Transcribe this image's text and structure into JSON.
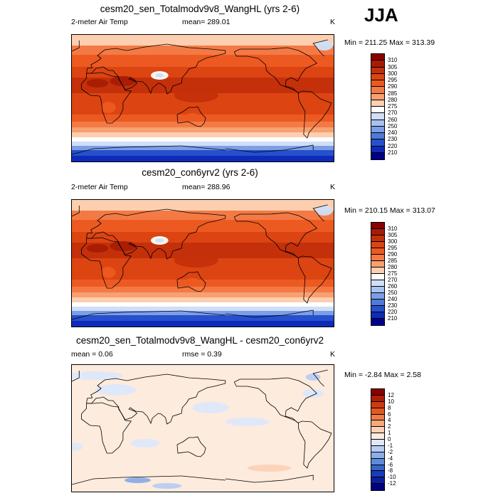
{
  "season": "JJA",
  "chart_data": [
    {
      "type": "heatmap",
      "title": "cesm20_sen_Totalmodv9v8_WangHL (yrs 2-6)",
      "left_label": "2-meter Air Temp",
      "center_label": "mean= 289.01",
      "units": "K",
      "minmax": "Min = 211.25 Max = 313.39",
      "min": 211.25,
      "max": 313.39,
      "mean": 289.01,
      "colorbar": {
        "levels": [
          "310",
          "305",
          "300",
          "295",
          "290",
          "285",
          "280",
          "275",
          "270",
          "260",
          "250",
          "240",
          "230",
          "220",
          "210"
        ],
        "colors": [
          "#8b0000",
          "#a81c05",
          "#c4300a",
          "#dc4412",
          "#ec5a22",
          "#f47a45",
          "#f8a070",
          "#fccfb0",
          "#ffffff",
          "#cfdff8",
          "#a9c2f0",
          "#7c9ee6",
          "#4e7ada",
          "#2650cc",
          "#0d2ab8",
          "#00008a"
        ]
      },
      "bands": [
        {
          "lat_top": 90,
          "lat_bottom": 75,
          "value": 275
        },
        {
          "lat_top": 75,
          "lat_bottom": 62,
          "value": 285
        },
        {
          "lat_top": 62,
          "lat_bottom": 45,
          "value": 290
        },
        {
          "lat_top": 45,
          "lat_bottom": 30,
          "value": 297
        },
        {
          "lat_top": 30,
          "lat_bottom": 8,
          "value": 301
        },
        {
          "lat_top": 8,
          "lat_bottom": -10,
          "value": 299
        },
        {
          "lat_top": -10,
          "lat_bottom": -22,
          "value": 295
        },
        {
          "lat_top": -22,
          "lat_bottom": -32,
          "value": 291
        },
        {
          "lat_top": -32,
          "lat_bottom": -40,
          "value": 286
        },
        {
          "lat_top": -40,
          "lat_bottom": -47,
          "value": 281
        },
        {
          "lat_top": -47,
          "lat_bottom": -54,
          "value": 276
        },
        {
          "lat_top": -54,
          "lat_bottom": -60,
          "value": 272
        },
        {
          "lat_top": -60,
          "lat_bottom": -66,
          "value": 260
        },
        {
          "lat_top": -66,
          "lat_bottom": -72,
          "value": 245
        },
        {
          "lat_top": -72,
          "lat_bottom": -80,
          "value": 225
        },
        {
          "lat_top": -80,
          "lat_bottom": -90,
          "value": 212
        }
      ],
      "spots": [
        {
          "lon": 90,
          "lat": 33,
          "rx": 12,
          "ry": 6,
          "value": 270
        },
        {
          "lon": 90,
          "lat": 33,
          "rx": 6,
          "ry": 3,
          "value": 262
        },
        {
          "lon": 40,
          "lat": 25,
          "rx": 18,
          "ry": 7,
          "value": 308
        },
        {
          "lon": 5,
          "lat": 22,
          "rx": 15,
          "ry": 6,
          "value": 306
        },
        {
          "lon": 140,
          "lat": 5,
          "rx": 30,
          "ry": 10,
          "value": 302
        },
        {
          "lon": 20,
          "lat": -12,
          "rx": 10,
          "ry": 8,
          "value": 293
        },
        {
          "lon": 135,
          "lat": -25,
          "rx": 10,
          "ry": 5,
          "value": 290
        },
        {
          "lon": -45,
          "lat": 75,
          "rx": 12,
          "ry": 7,
          "value": 262
        }
      ]
    },
    {
      "type": "heatmap",
      "title": "cesm20_con6yrv2 (yrs 2-6)",
      "left_label": "2-meter Air Temp",
      "center_label": "mean= 288.96",
      "units": "K",
      "minmax": "Min = 210.15 Max = 313.07",
      "min": 210.15,
      "max": 313.07,
      "mean": 288.96,
      "colorbar": {
        "levels": [
          "310",
          "305",
          "300",
          "295",
          "290",
          "285",
          "280",
          "275",
          "270",
          "260",
          "250",
          "240",
          "230",
          "220",
          "210"
        ],
        "colors": [
          "#8b0000",
          "#a81c05",
          "#c4300a",
          "#dc4412",
          "#ec5a22",
          "#f47a45",
          "#f8a070",
          "#fccfb0",
          "#ffffff",
          "#cfdff8",
          "#a9c2f0",
          "#7c9ee6",
          "#4e7ada",
          "#2650cc",
          "#0d2ab8",
          "#00008a"
        ]
      },
      "bands": [
        {
          "lat_top": 90,
          "lat_bottom": 75,
          "value": 275
        },
        {
          "lat_top": 75,
          "lat_bottom": 62,
          "value": 285
        },
        {
          "lat_top": 62,
          "lat_bottom": 45,
          "value": 290
        },
        {
          "lat_top": 45,
          "lat_bottom": 30,
          "value": 297
        },
        {
          "lat_top": 30,
          "lat_bottom": 8,
          "value": 301
        },
        {
          "lat_top": 8,
          "lat_bottom": -10,
          "value": 299
        },
        {
          "lat_top": -10,
          "lat_bottom": -22,
          "value": 295
        },
        {
          "lat_top": -22,
          "lat_bottom": -32,
          "value": 291
        },
        {
          "lat_top": -32,
          "lat_bottom": -40,
          "value": 286
        },
        {
          "lat_top": -40,
          "lat_bottom": -47,
          "value": 281
        },
        {
          "lat_top": -47,
          "lat_bottom": -54,
          "value": 276
        },
        {
          "lat_top": -54,
          "lat_bottom": -60,
          "value": 272
        },
        {
          "lat_top": -60,
          "lat_bottom": -66,
          "value": 260
        },
        {
          "lat_top": -66,
          "lat_bottom": -72,
          "value": 245
        },
        {
          "lat_top": -72,
          "lat_bottom": -80,
          "value": 225
        },
        {
          "lat_top": -80,
          "lat_bottom": -90,
          "value": 212
        }
      ],
      "spots": [
        {
          "lon": 90,
          "lat": 33,
          "rx": 12,
          "ry": 6,
          "value": 270
        },
        {
          "lon": 90,
          "lat": 33,
          "rx": 6,
          "ry": 3,
          "value": 262
        },
        {
          "lon": 40,
          "lat": 25,
          "rx": 18,
          "ry": 7,
          "value": 308
        },
        {
          "lon": 5,
          "lat": 22,
          "rx": 15,
          "ry": 6,
          "value": 306
        },
        {
          "lon": 140,
          "lat": 5,
          "rx": 30,
          "ry": 10,
          "value": 302
        },
        {
          "lon": 20,
          "lat": -12,
          "rx": 10,
          "ry": 8,
          "value": 293
        },
        {
          "lon": 135,
          "lat": -25,
          "rx": 10,
          "ry": 5,
          "value": 290
        },
        {
          "lon": -45,
          "lat": 75,
          "rx": 12,
          "ry": 7,
          "value": 262
        }
      ]
    },
    {
      "type": "heatmap",
      "title": "cesm20_sen_Totalmodv9v8_WangHL - cesm20_con6yrv2",
      "left_label": "mean =   0.06",
      "center_label": "rmse =   0.39",
      "units": "K",
      "minmax": "Min =  -2.84 Max =   2.58",
      "min": -2.84,
      "max": 2.58,
      "mean": 0.06,
      "rmse": 0.39,
      "colorbar": {
        "levels": [
          "12",
          "10",
          "8",
          "6",
          "4",
          "2",
          "1",
          "0",
          "-1",
          "-2",
          "-4",
          "-6",
          "-8",
          "-10",
          "-12"
        ],
        "colors": [
          "#8b0000",
          "#b01e08",
          "#d03a10",
          "#e45820",
          "#f07d48",
          "#f8a87c",
          "#fcd2b6",
          "#fdebdd",
          "#dde8fa",
          "#b8cdf3",
          "#8aaee8",
          "#5e8adc",
          "#3464cc",
          "#1a3cba",
          "#0a20a0",
          "#000080"
        ]
      },
      "bands": [
        {
          "lat_top": 90,
          "lat_bottom": -90,
          "value": 0.4
        }
      ],
      "spots": [
        {
          "lon": 30,
          "lat": 55,
          "rx": 28,
          "ry": 8,
          "value": -0.5
        },
        {
          "lon": -60,
          "lat": 50,
          "rx": 15,
          "ry": 6,
          "value": -0.5
        },
        {
          "lon": 160,
          "lat": 30,
          "rx": 25,
          "ry": 8,
          "value": -0.5
        },
        {
          "lon": -150,
          "lat": 10,
          "rx": 30,
          "ry": 6,
          "value": -0.5
        },
        {
          "lon": 70,
          "lat": -20,
          "rx": 20,
          "ry": 6,
          "value": -0.5
        },
        {
          "lon": -30,
          "lat": -25,
          "rx": 15,
          "ry": 6,
          "value": -0.5
        },
        {
          "lon": 0,
          "lat": 75,
          "rx": 40,
          "ry": 6,
          "value": -0.5
        },
        {
          "lon": -120,
          "lat": -55,
          "rx": 30,
          "ry": 5,
          "value": 1.5
        },
        {
          "lon": 60,
          "lat": -72,
          "rx": 18,
          "ry": 4,
          "value": -3
        },
        {
          "lon": 100,
          "lat": -80,
          "rx": 20,
          "ry": 4,
          "value": -1.5
        },
        {
          "lon": -60,
          "lat": 73,
          "rx": 10,
          "ry": 5,
          "value": -1.5
        }
      ]
    }
  ]
}
